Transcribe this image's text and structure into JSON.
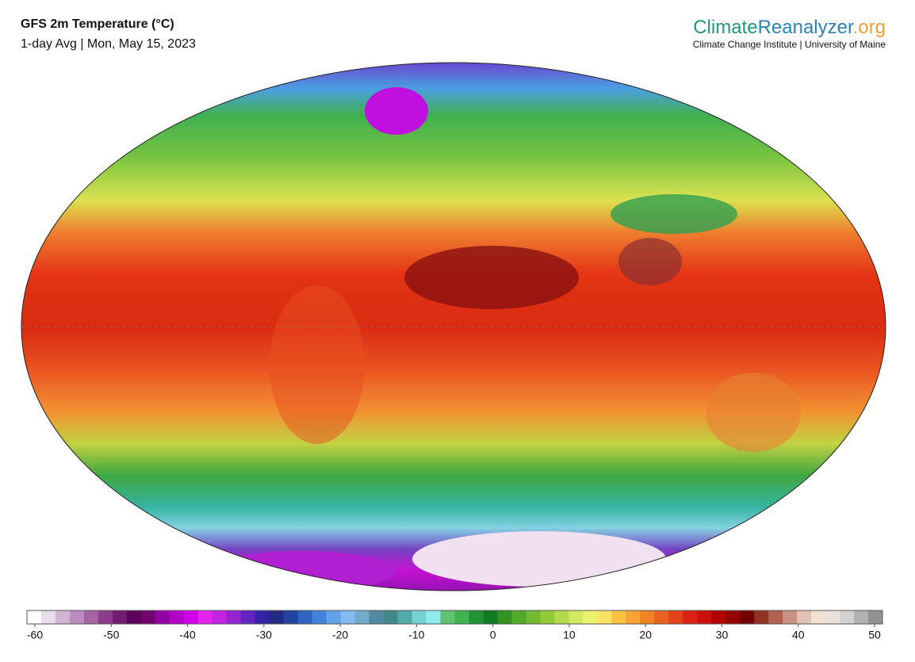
{
  "header": {
    "title": "GFS 2m Temperature (°C)",
    "subtitle": "1-day Avg | Mon, May 15, 2023"
  },
  "brand": {
    "parts": [
      {
        "text": "Climate",
        "color": "#23977a"
      },
      {
        "text": "Reanalyzer",
        "color": "#2b82b4"
      },
      {
        "text": ".org",
        "color": "#f0a030"
      }
    ],
    "subtitle": "Climate Change Institute | University of Maine"
  },
  "colorbar": {
    "ticks": [
      -60,
      -50,
      -40,
      -30,
      -20,
      -10,
      0,
      10,
      20,
      30,
      40,
      50
    ],
    "colors": [
      "#ffffff",
      "#eadcea",
      "#d4b4d4",
      "#bc8cbc",
      "#a464a4",
      "#8c3c8c",
      "#741c74",
      "#5c005c",
      "#72006f",
      "#9200a2",
      "#b200ca",
      "#d200ea",
      "#e424f2",
      "#c424e2",
      "#9424d2",
      "#6424c2",
      "#3424a4",
      "#222a82",
      "#2242a2",
      "#3262c2",
      "#4282da",
      "#62a2ea",
      "#82baf2",
      "#72aaca",
      "#528aa2",
      "#428a8a",
      "#52aaaa",
      "#72d2d2",
      "#92eaea",
      "#62c272",
      "#42b252",
      "#229232",
      "#127a22",
      "#329222",
      "#52aa2a",
      "#72ba32",
      "#92ca3a",
      "#b2da4a",
      "#d2ea62",
      "#eaf272",
      "#fae262",
      "#fac242",
      "#faa232",
      "#f28222",
      "#ea6222",
      "#e2421a",
      "#da2212",
      "#ca120a",
      "#b20202",
      "#920202",
      "#720202",
      "#923222",
      "#b26252",
      "#ca9282",
      "#e2c2b2",
      "#f2e2d2",
      "#eae2da",
      "#d2d2d2",
      "#b2b2b2",
      "#929292"
    ]
  }
}
